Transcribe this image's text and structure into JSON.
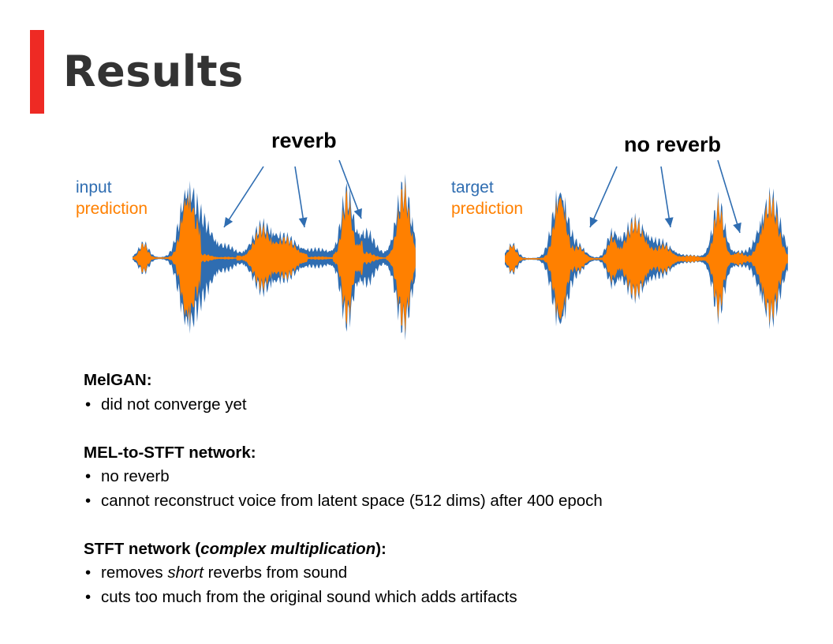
{
  "slide": {
    "title": "Results",
    "accent_color": "#ee2a24"
  },
  "figure": {
    "left": {
      "callout": "reverb",
      "legend": [
        "input",
        "prediction"
      ]
    },
    "right": {
      "callout": "no reverb",
      "legend": [
        "target",
        "prediction"
      ]
    },
    "colors": {
      "reference": "#2f6db1",
      "prediction": "#ff8000",
      "arrow": "#2f6db1"
    }
  },
  "notes": {
    "melgan": {
      "heading": "MelGAN:",
      "bullets": [
        "did not converge yet"
      ]
    },
    "mel_to_stft": {
      "heading": "MEL-to-STFT network:",
      "bullets": [
        "no reverb",
        "cannot reconstruct voice from latent space (512 dims) after 400 epoch"
      ]
    },
    "stft": {
      "heading_pre": "STFT network (",
      "heading_em": "complex multiplication",
      "heading_post": "):",
      "bullet1_pre": "removes ",
      "bullet1_em": "short",
      "bullet1_post": " reverbs from sound",
      "bullet2": "cuts too much from the original sound which adds artifacts"
    }
  }
}
